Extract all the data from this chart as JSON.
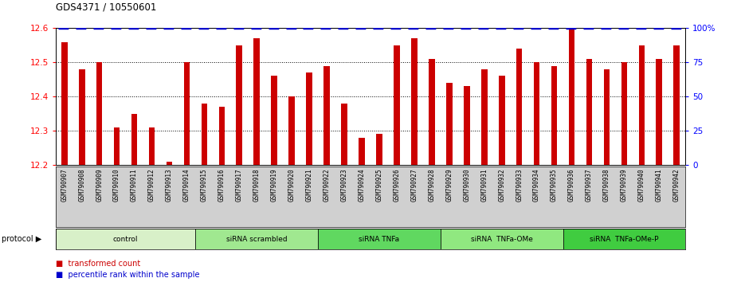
{
  "title": "GDS4371 / 10550601",
  "samples": [
    "GSM790907",
    "GSM790908",
    "GSM790909",
    "GSM790910",
    "GSM790911",
    "GSM790912",
    "GSM790913",
    "GSM790914",
    "GSM790915",
    "GSM790916",
    "GSM790917",
    "GSM790918",
    "GSM790919",
    "GSM790920",
    "GSM790921",
    "GSM790922",
    "GSM790923",
    "GSM790924",
    "GSM790925",
    "GSM790926",
    "GSM790927",
    "GSM790928",
    "GSM790929",
    "GSM790930",
    "GSM790931",
    "GSM790932",
    "GSM790933",
    "GSM790934",
    "GSM790935",
    "GSM790936",
    "GSM790937",
    "GSM790938",
    "GSM790939",
    "GSM790940",
    "GSM790941",
    "GSM790942"
  ],
  "bar_values": [
    12.56,
    12.48,
    12.5,
    12.31,
    12.35,
    12.31,
    12.21,
    12.5,
    12.38,
    12.37,
    12.55,
    12.57,
    12.46,
    12.4,
    12.47,
    12.49,
    12.38,
    12.28,
    12.29,
    12.55,
    12.57,
    12.51,
    12.44,
    12.43,
    12.48,
    12.46,
    12.54,
    12.5,
    12.49,
    12.62,
    12.51,
    12.48,
    12.5,
    12.55,
    12.51,
    12.55
  ],
  "groups": [
    {
      "label": "control",
      "start": 0,
      "end": 8,
      "color": "#d8f0c8"
    },
    {
      "label": "siRNA scrambled",
      "start": 8,
      "end": 15,
      "color": "#a0e890"
    },
    {
      "label": "siRNA TNFa",
      "start": 15,
      "end": 22,
      "color": "#60d860"
    },
    {
      "label": "siRNA  TNFa-OMe",
      "start": 22,
      "end": 29,
      "color": "#90e880"
    },
    {
      "label": "siRNA  TNFa-OMe-P",
      "start": 29,
      "end": 36,
      "color": "#40cc40"
    }
  ],
  "ylim_left": [
    12.2,
    12.6
  ],
  "ylim_right": [
    0,
    100
  ],
  "bar_color": "#cc0000",
  "percentile_color": "#0000cc",
  "label_bg_color": "#d0d0d0",
  "plot_bg_color": "#ffffff",
  "yticks_left": [
    12.2,
    12.3,
    12.4,
    12.5,
    12.6
  ],
  "yticks_right": [
    0,
    25,
    50,
    75,
    100
  ],
  "ytick_right_labels": [
    "0",
    "25",
    "50",
    "75",
    "100%"
  ],
  "dotted_lines": [
    12.3,
    12.4,
    12.5
  ]
}
